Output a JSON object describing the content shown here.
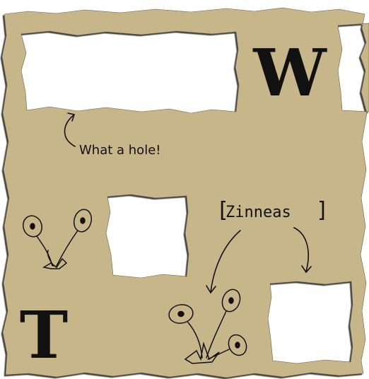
{
  "letters": {
    "top_right": "W",
    "bottom_left": "T"
  },
  "annotations": {
    "hole_note": "What a hole!",
    "flower_label_left_bracket": "[",
    "flower_label": "Zinneas",
    "flower_label_right_bracket": "]"
  },
  "colors": {
    "paper": "#c8b68b",
    "paper_edge": "#3a3a3a",
    "hole": "#ffffff",
    "ink": "#111111"
  },
  "icons": {
    "arrow_to_hole": "curved-arrow-icon",
    "arrow_to_flowers": "curved-arrow-icon",
    "arrow_to_small_hole": "curved-arrow-icon",
    "small_flower": "flower-sketch-icon",
    "large_flower": "flower-sketch-icon"
  }
}
